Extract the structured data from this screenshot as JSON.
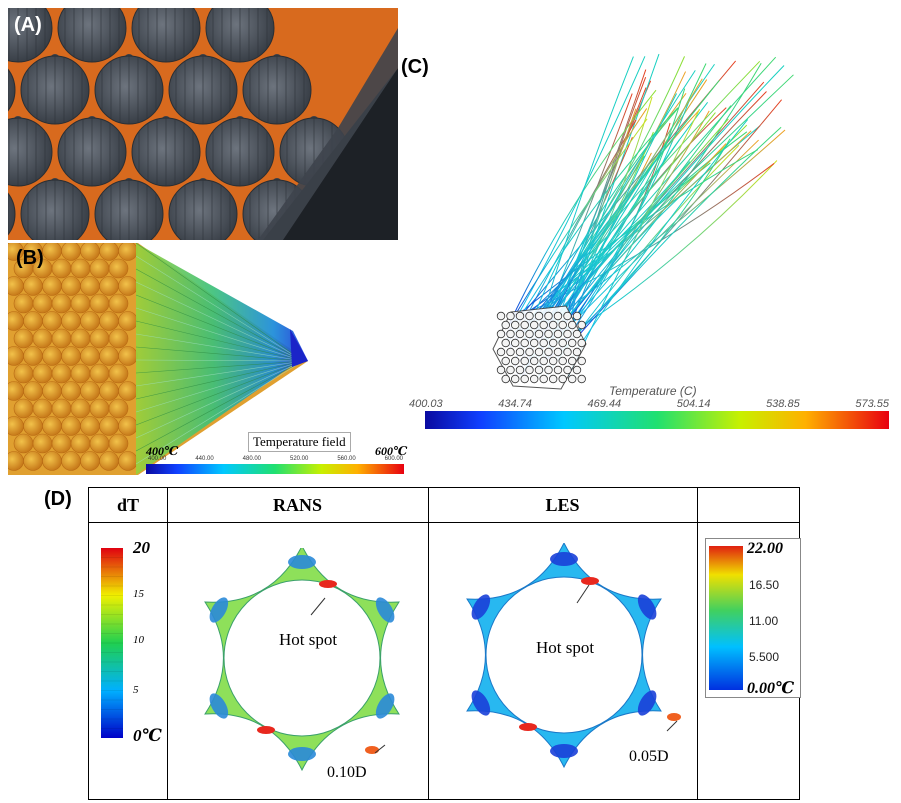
{
  "panels": {
    "a": {
      "label": "(A)"
    },
    "b": {
      "label": "(B)",
      "colorbar": {
        "min_label": "400℃",
        "max_label": "600℃",
        "title": "Temperature field",
        "ticks": [
          "400.00",
          "440.00",
          "480.00",
          "520.00",
          "560.00",
          "600.00"
        ]
      }
    },
    "c": {
      "label": "(C)",
      "colorbar": {
        "title": "Temperature (C)",
        "ticks": [
          "400.03",
          "434.74",
          "469.44",
          "504.14",
          "538.85",
          "573.55"
        ]
      }
    },
    "d": {
      "label": "(D)",
      "headers": {
        "col1": "dT",
        "col2": "RANS",
        "col3": "LES",
        "col4": ""
      },
      "left_colorbar": {
        "max": "20",
        "t15": "15",
        "t10": "10",
        "t5": "5",
        "min": "0℃"
      },
      "right_colorbar": {
        "max": "22.00",
        "t1": "16.50",
        "t2": "11.00",
        "t3": "5.500",
        "min": "0.00℃"
      },
      "rans": {
        "hot_spot": "Hot spot",
        "distance": "0.10D"
      },
      "les": {
        "hot_spot": "Hot spot",
        "distance": "0.05D"
      }
    }
  },
  "colors": {
    "mesh_orange": "#d86a1e",
    "rod_gray": "#4a5059",
    "hot": "#e8281e",
    "cold": "#1a2fd8"
  }
}
